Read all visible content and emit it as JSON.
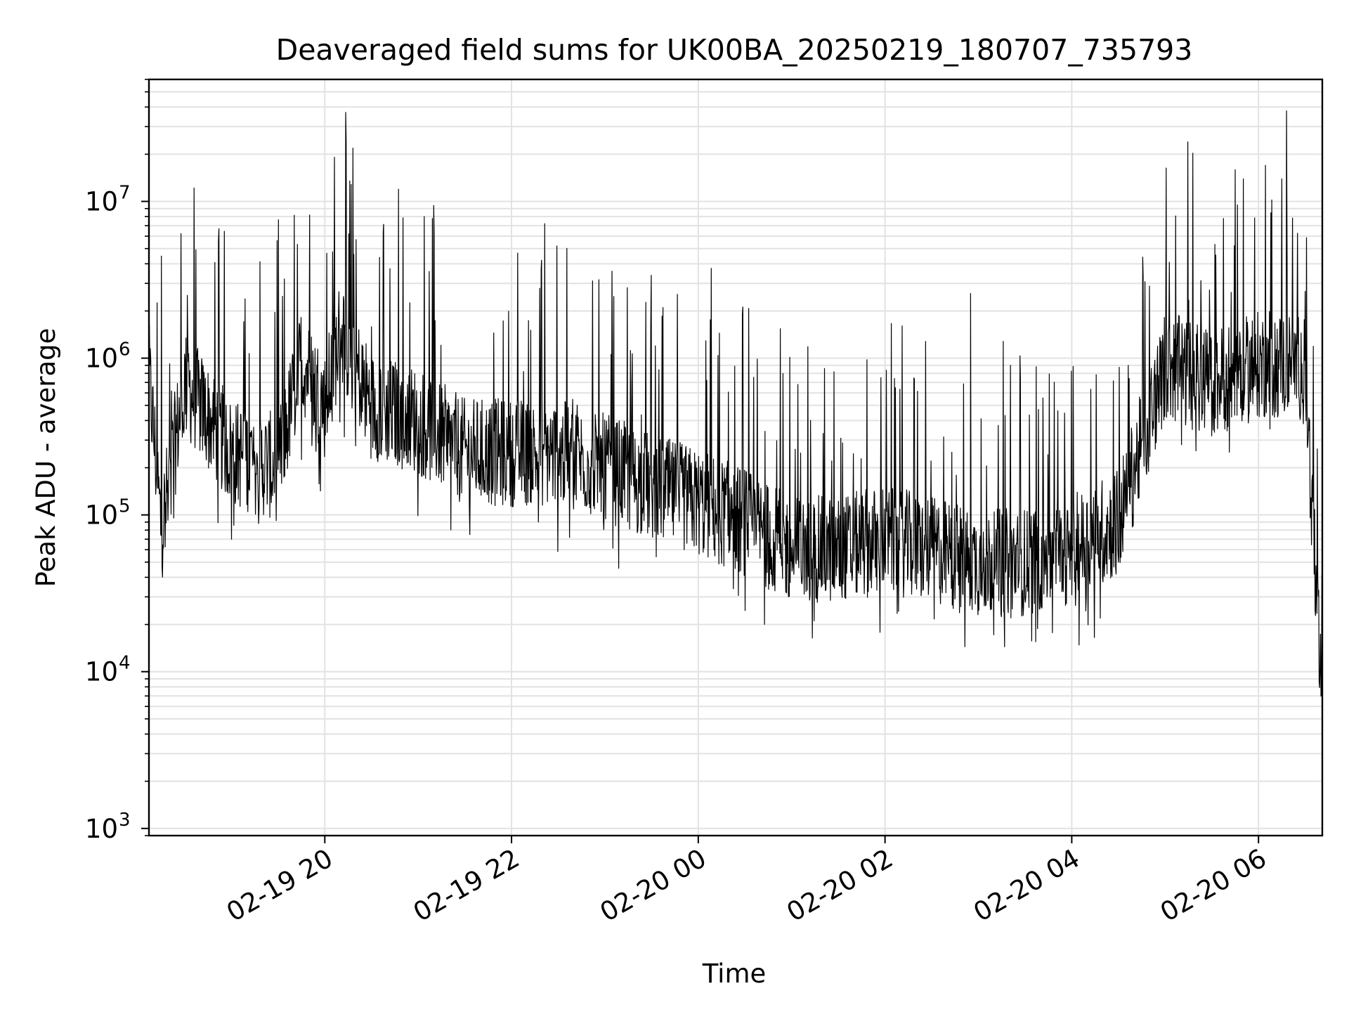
{
  "chart_data": {
    "type": "line",
    "title": "Deaveraged field sums for UK00BA_20250219_180707_735793",
    "xlabel": "Time",
    "ylabel": "Peak ADU - average",
    "x_type": "datetime",
    "x_range": [
      "2025-02-19T18:07",
      "2025-02-20T06:41"
    ],
    "y_scale": "log",
    "ylim": [
      900,
      60000000
    ],
    "grid": true,
    "line_color": "#000000",
    "grid_color": "#e2e2e2",
    "x_ticks": [
      {
        "t": "2025-02-19T20:00",
        "label": "02-19 20"
      },
      {
        "t": "2025-02-19T22:00",
        "label": "02-19 22"
      },
      {
        "t": "2025-02-20T00:00",
        "label": "02-20 00"
      },
      {
        "t": "2025-02-20T02:00",
        "label": "02-20 02"
      },
      {
        "t": "2025-02-20T04:00",
        "label": "02-20 04"
      },
      {
        "t": "2025-02-20T06:00",
        "label": "02-20 06"
      }
    ],
    "y_ticks": [
      {
        "value": 1000,
        "base": "10",
        "exp": "3"
      },
      {
        "value": 10000,
        "base": "10",
        "exp": "4"
      },
      {
        "value": 100000,
        "base": "10",
        "exp": "5"
      },
      {
        "value": 1000000,
        "base": "10",
        "exp": "6"
      },
      {
        "value": 10000000,
        "base": "10",
        "exp": "7"
      }
    ],
    "series_note": "dense noisy trace; values sampled approx. every 30 min (median level)",
    "series": [
      {
        "x": [
          "2025-02-19T18:07",
          "2025-02-19T18:15",
          "2025-02-19T18:30",
          "2025-02-19T19:00",
          "2025-02-19T19:30",
          "2025-02-19T19:45",
          "2025-02-19T20:00",
          "2025-02-19T20:10",
          "2025-02-19T20:30",
          "2025-02-19T21:00",
          "2025-02-19T21:30",
          "2025-02-19T22:00",
          "2025-02-19T22:30",
          "2025-02-19T23:00",
          "2025-02-19T23:30",
          "2025-02-20T00:00",
          "2025-02-20T00:30",
          "2025-02-20T01:00",
          "2025-02-20T01:30",
          "2025-02-20T02:00",
          "2025-02-20T02:30",
          "2025-02-20T03:00",
          "2025-02-20T03:30",
          "2025-02-20T04:00",
          "2025-02-20T04:30",
          "2025-02-20T05:00",
          "2025-02-20T05:30",
          "2025-02-20T06:00",
          "2025-02-20T06:30",
          "2025-02-20T06:41"
        ],
        "y": [
          800000,
          80000,
          700000,
          250000,
          200000,
          1000000,
          500000,
          1500000,
          500000,
          400000,
          250000,
          250000,
          250000,
          200000,
          150000,
          120000,
          90000,
          60000,
          60000,
          70000,
          60000,
          50000,
          50000,
          60000,
          90000,
          900000,
          700000,
          900000,
          900000,
          5000
        ]
      }
    ],
    "spikes": [
      {
        "t": "2025-02-19T18:15",
        "y": 4500000
      },
      {
        "t": "2025-02-19T20:05",
        "y": 4800000
      },
      {
        "t": "2025-02-20T02:55",
        "y": 2600000
      },
      {
        "t": "2025-02-20T05:45",
        "y": 16000000
      },
      {
        "t": "2025-02-20T06:15",
        "y": 14000000
      },
      {
        "t": "2025-02-20T06:18",
        "y": 38000000
      }
    ]
  }
}
